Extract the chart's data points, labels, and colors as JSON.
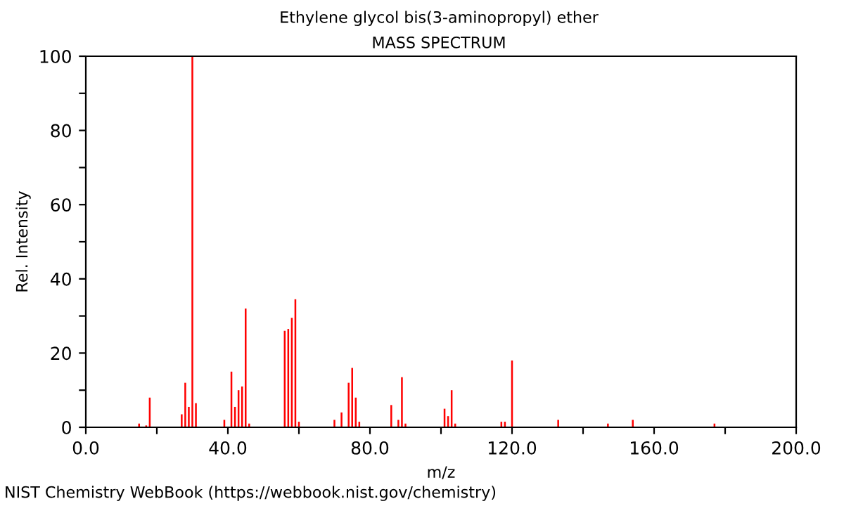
{
  "chart_data": {
    "type": "bar",
    "title": "Ethylene glycol bis(3-aminopropyl) ether",
    "subtitle": "MASS SPECTRUM",
    "xlabel": "m/z",
    "ylabel": "Rel. Intensity",
    "x": [
      15,
      17,
      18,
      27,
      28,
      29,
      30,
      31,
      39,
      41,
      42,
      43,
      44,
      45,
      46,
      56,
      57,
      58,
      59,
      60,
      70,
      72,
      74,
      75,
      76,
      77,
      86,
      88,
      89,
      90,
      101,
      102,
      103,
      104,
      117,
      118,
      120,
      133,
      147,
      154,
      177
    ],
    "values": [
      1,
      0.5,
      8,
      3.5,
      12,
      5.5,
      100,
      6.5,
      2,
      15,
      5.5,
      10,
      11,
      32,
      1,
      26,
      26.5,
      29.5,
      34.5,
      1.5,
      2,
      4,
      12,
      16,
      8,
      1.5,
      6,
      2,
      13.5,
      1,
      5,
      3,
      10,
      1,
      1.5,
      1.5,
      18,
      2,
      1,
      2,
      1
    ],
    "color": "#ff0000",
    "xlim": [
      0,
      200
    ],
    "xticks": [
      {
        "value": 0,
        "label": "0.0"
      },
      {
        "value": 20,
        "label": null
      },
      {
        "value": 40,
        "label": "40.0"
      },
      {
        "value": 60,
        "label": null
      },
      {
        "value": 80,
        "label": "80.0"
      },
      {
        "value": 100,
        "label": null
      },
      {
        "value": 120,
        "label": "120.0"
      },
      {
        "value": 140,
        "label": null
      },
      {
        "value": 160,
        "label": "160.0"
      },
      {
        "value": 180,
        "label": null
      },
      {
        "value": 200,
        "label": "200.0"
      }
    ],
    "ylim": [
      0,
      100
    ],
    "yticks": [
      0,
      {
        "value": 10,
        "label": null
      },
      20,
      {
        "value": 30,
        "label": null
      },
      40,
      {
        "value": 50,
        "label": null
      },
      60,
      {
        "value": 70,
        "label": null
      },
      80,
      {
        "value": 90,
        "label": null
      },
      100
    ],
    "annotations": [
      "NIST Chemistry WebBook (https://webbook.nist.gov/chemistry)"
    ],
    "grid": false
  }
}
